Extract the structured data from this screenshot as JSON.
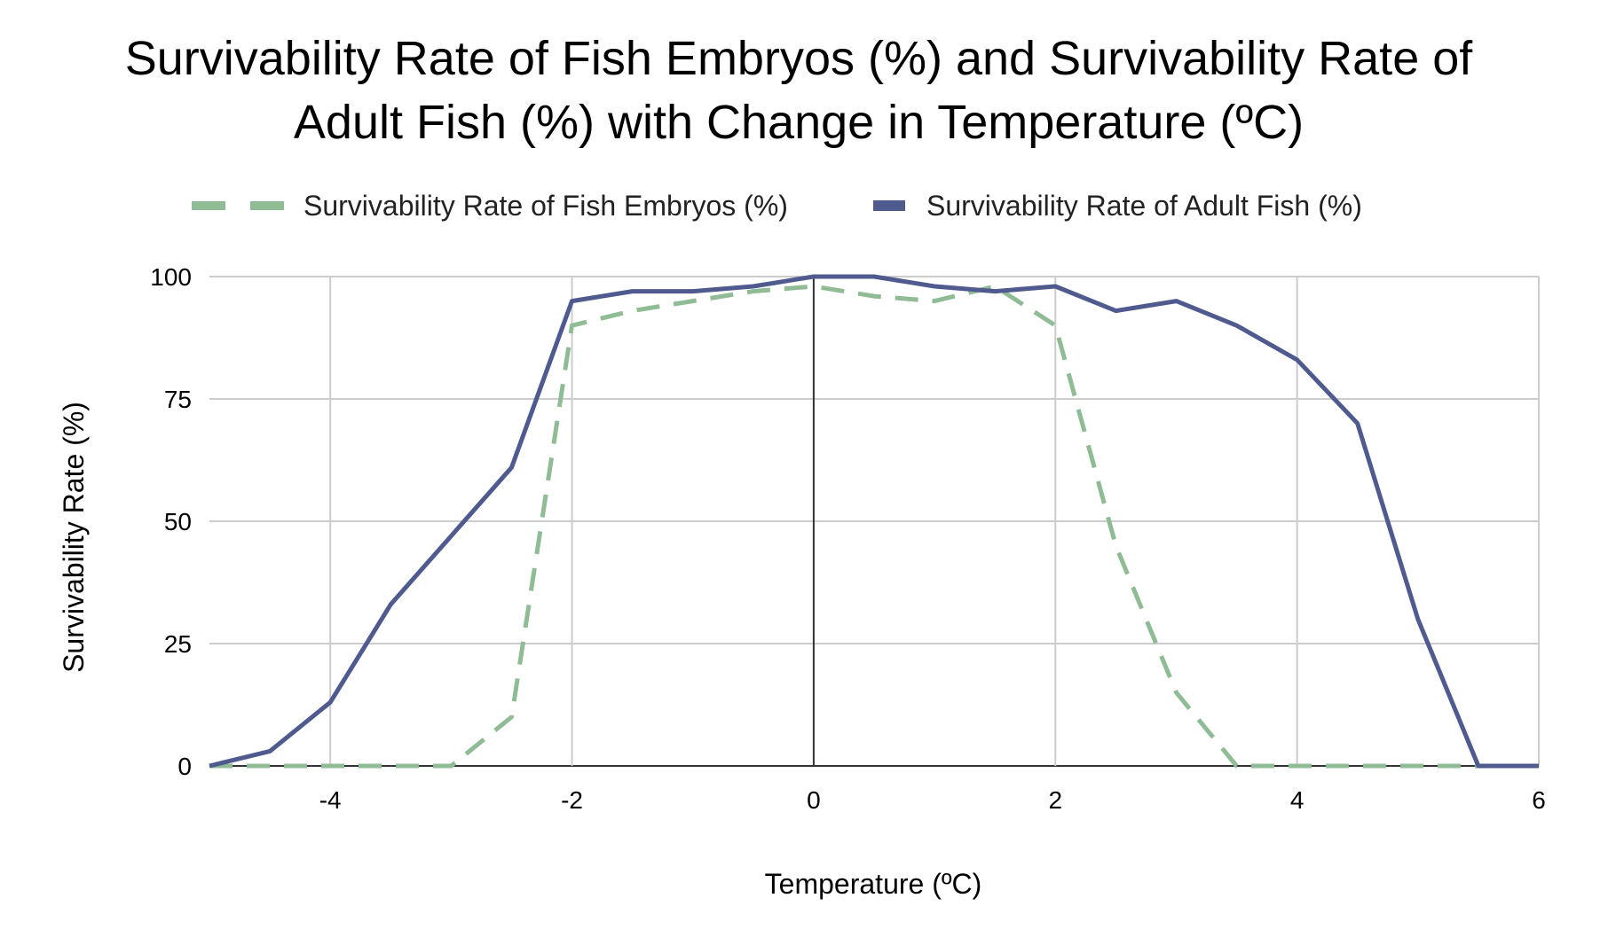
{
  "chart_data": {
    "type": "line",
    "title_lines": [
      "Survivability Rate of Fish Embryos (%) and Survivability Rate of",
      "Adult Fish (%) with Change in Temperature (ºC)"
    ],
    "xlabel": "Temperature (ºC)",
    "ylabel": "Survivability Rate (%)",
    "xlim": [
      -5,
      6
    ],
    "ylim": [
      0,
      100
    ],
    "x_ticks": [
      -4,
      -2,
      0,
      2,
      4,
      6
    ],
    "y_ticks": [
      0,
      25,
      50,
      75,
      100
    ],
    "grid": true,
    "legend_position": "top",
    "x": [
      -5,
      -4.5,
      -4,
      -3.5,
      -3,
      -2.5,
      -2,
      -1.5,
      -1,
      -0.5,
      0,
      0.5,
      1,
      1.5,
      2,
      2.5,
      3,
      3.5,
      4,
      4.5,
      5,
      5.5,
      6
    ],
    "series": [
      {
        "name": "Survivability Rate of Fish Embryos (%)",
        "color": "#8fbc94",
        "style": "dashed",
        "values": [
          0,
          0,
          0,
          0,
          0,
          10,
          90,
          93,
          95,
          97,
          98,
          96,
          95,
          98,
          90,
          45,
          15,
          0,
          0,
          0,
          0,
          0,
          0
        ]
      },
      {
        "name": "Survivability Rate of Adult Fish (%)",
        "color": "#4f5a8e",
        "style": "solid",
        "values": [
          0,
          3,
          13,
          33,
          47,
          61,
          95,
          97,
          97,
          98,
          100,
          100,
          98,
          97,
          98,
          93,
          95,
          90,
          83,
          70,
          30,
          0,
          0
        ]
      }
    ]
  }
}
